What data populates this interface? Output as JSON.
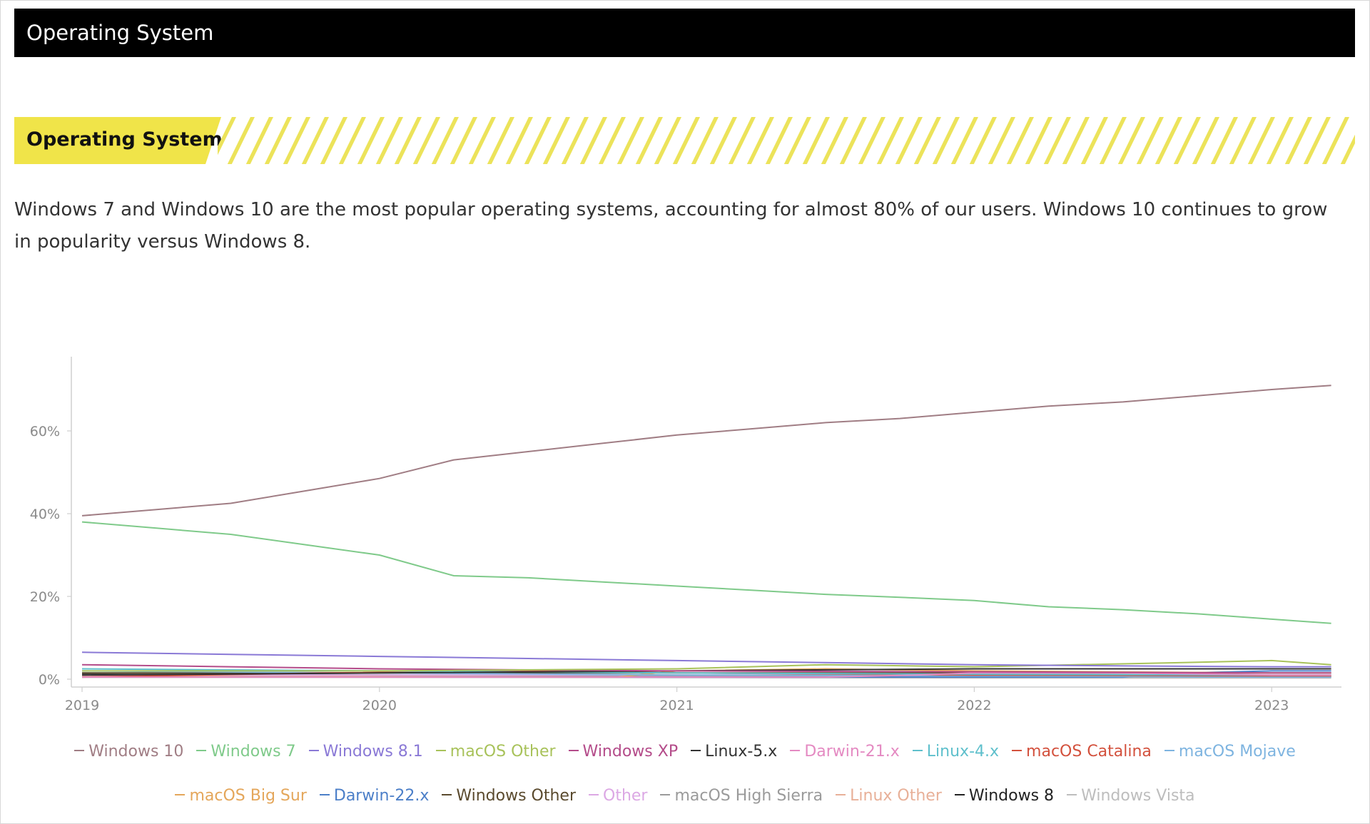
{
  "header": {
    "title": "Operating System"
  },
  "section": {
    "title": "Operating System",
    "accent_color": "#f0e449"
  },
  "description": "Windows 7 and Windows 10 are the most popular operating systems, accounting for almost 80% of our users. Windows 10 continues to grow in popularity versus Windows 8.",
  "chart_data": {
    "type": "line",
    "title": "",
    "xlabel": "",
    "ylabel": "",
    "x_ticks": [
      "2019",
      "2020",
      "2021",
      "2022",
      "2023"
    ],
    "y_ticks": [
      "0%",
      "20%",
      "40%",
      "60%"
    ],
    "y_tick_values": [
      0,
      20,
      40,
      60
    ],
    "ylim": [
      0,
      78
    ],
    "xlim": [
      2019.0,
      2023.25
    ],
    "grid": false,
    "legend_position": "bottom",
    "series": [
      {
        "name": "Windows 10",
        "color": "#a07d84",
        "points": [
          [
            2019.0,
            39.5
          ],
          [
            2019.25,
            41.0
          ],
          [
            2019.5,
            42.5
          ],
          [
            2019.75,
            45.5
          ],
          [
            2020.0,
            48.5
          ],
          [
            2020.25,
            53.0
          ],
          [
            2020.5,
            55.0
          ],
          [
            2020.75,
            57.0
          ],
          [
            2021.0,
            59.0
          ],
          [
            2021.25,
            60.5
          ],
          [
            2021.5,
            62.0
          ],
          [
            2021.75,
            63.0
          ],
          [
            2022.0,
            64.5
          ],
          [
            2022.25,
            66.0
          ],
          [
            2022.5,
            67.0
          ],
          [
            2022.75,
            68.5
          ],
          [
            2023.0,
            70.0
          ],
          [
            2023.2,
            71.0
          ]
        ]
      },
      {
        "name": "Windows 7",
        "color": "#7fca8a",
        "points": [
          [
            2019.0,
            38.0
          ],
          [
            2019.25,
            36.5
          ],
          [
            2019.5,
            35.0
          ],
          [
            2019.75,
            32.5
          ],
          [
            2020.0,
            30.0
          ],
          [
            2020.25,
            25.0
          ],
          [
            2020.5,
            24.5
          ],
          [
            2020.75,
            23.5
          ],
          [
            2021.0,
            22.5
          ],
          [
            2021.25,
            21.5
          ],
          [
            2021.5,
            20.5
          ],
          [
            2021.75,
            19.8
          ],
          [
            2022.0,
            19.0
          ],
          [
            2022.25,
            17.5
          ],
          [
            2022.5,
            16.8
          ],
          [
            2022.75,
            15.8
          ],
          [
            2023.0,
            14.5
          ],
          [
            2023.2,
            13.5
          ]
        ]
      },
      {
        "name": "Windows 8.1",
        "color": "#8a79d6",
        "points": [
          [
            2019.0,
            6.5
          ],
          [
            2019.5,
            6.0
          ],
          [
            2020.0,
            5.5
          ],
          [
            2020.5,
            5.0
          ],
          [
            2021.0,
            4.5
          ],
          [
            2021.5,
            4.0
          ],
          [
            2022.0,
            3.5
          ],
          [
            2022.5,
            3.2
          ],
          [
            2023.0,
            3.0
          ],
          [
            2023.2,
            3.0
          ]
        ]
      },
      {
        "name": "macOS Other",
        "color": "#a8c25a",
        "points": [
          [
            2019.0,
            2.0
          ],
          [
            2020.0,
            2.0
          ],
          [
            2021.0,
            2.5
          ],
          [
            2021.5,
            3.5
          ],
          [
            2022.0,
            3.0
          ],
          [
            2022.7,
            4.0
          ],
          [
            2023.0,
            4.5
          ],
          [
            2023.2,
            3.5
          ]
        ]
      },
      {
        "name": "Windows XP",
        "color": "#b44c8a",
        "points": [
          [
            2019.0,
            3.5
          ],
          [
            2019.5,
            3.0
          ],
          [
            2020.0,
            2.5
          ],
          [
            2021.0,
            2.0
          ],
          [
            2022.0,
            1.8
          ],
          [
            2023.0,
            1.5
          ],
          [
            2023.2,
            1.5
          ]
        ]
      },
      {
        "name": "Linux-5.x",
        "color": "#333333",
        "points": [
          [
            2019.0,
            1.0
          ],
          [
            2020.0,
            1.5
          ],
          [
            2021.0,
            2.0
          ],
          [
            2022.0,
            2.5
          ],
          [
            2023.0,
            2.5
          ],
          [
            2023.2,
            2.5
          ]
        ]
      },
      {
        "name": "Darwin-21.x",
        "color": "#e48ac2",
        "points": [
          [
            2019.0,
            0.5
          ],
          [
            2021.5,
            0.5
          ],
          [
            2021.8,
            1.0
          ],
          [
            2022.0,
            1.5
          ],
          [
            2022.5,
            1.5
          ],
          [
            2023.0,
            1.0
          ],
          [
            2023.2,
            1.0
          ]
        ]
      },
      {
        "name": "Linux-4.x",
        "color": "#5fc0cc",
        "points": [
          [
            2019.0,
            2.5
          ],
          [
            2020.0,
            2.0
          ],
          [
            2021.0,
            1.5
          ],
          [
            2022.0,
            1.2
          ],
          [
            2023.0,
            1.0
          ],
          [
            2023.2,
            1.0
          ]
        ]
      },
      {
        "name": "macOS Catalina",
        "color": "#d3513d",
        "points": [
          [
            2019.0,
            0.5
          ],
          [
            2019.8,
            1.5
          ],
          [
            2020.5,
            2.0
          ],
          [
            2021.0,
            1.5
          ],
          [
            2022.0,
            1.0
          ],
          [
            2023.0,
            0.8
          ],
          [
            2023.2,
            0.8
          ]
        ]
      },
      {
        "name": "macOS Mojave",
        "color": "#7eb4e0",
        "points": [
          [
            2019.0,
            2.0
          ],
          [
            2020.0,
            1.5
          ],
          [
            2021.0,
            1.0
          ],
          [
            2022.0,
            0.8
          ],
          [
            2023.0,
            0.5
          ],
          [
            2023.2,
            0.5
          ]
        ]
      },
      {
        "name": "macOS Big Sur",
        "color": "#e4a65a",
        "points": [
          [
            2019.0,
            0.5
          ],
          [
            2020.8,
            0.5
          ],
          [
            2021.0,
            2.0
          ],
          [
            2021.5,
            2.5
          ],
          [
            2022.0,
            2.0
          ],
          [
            2023.0,
            1.5
          ],
          [
            2023.2,
            1.5
          ]
        ]
      },
      {
        "name": "Darwin-22.x",
        "color": "#4c7fc8",
        "points": [
          [
            2019.0,
            0.5
          ],
          [
            2022.5,
            0.5
          ],
          [
            2022.7,
            1.5
          ],
          [
            2023.0,
            2.0
          ],
          [
            2023.2,
            2.0
          ]
        ]
      },
      {
        "name": "Windows Other",
        "color": "#5a4a2e",
        "points": [
          [
            2019.0,
            1.5
          ],
          [
            2020.0,
            1.5
          ],
          [
            2021.0,
            1.5
          ],
          [
            2022.0,
            1.5
          ],
          [
            2023.0,
            1.5
          ],
          [
            2023.2,
            1.5
          ]
        ]
      },
      {
        "name": "Other",
        "color": "#dca8e4",
        "points": [
          [
            2019.0,
            1.0
          ],
          [
            2020.0,
            1.0
          ],
          [
            2021.0,
            1.0
          ],
          [
            2022.0,
            1.0
          ],
          [
            2023.0,
            1.0
          ],
          [
            2023.2,
            1.0
          ]
        ]
      },
      {
        "name": "macOS High Sierra",
        "color": "#9a9a9a",
        "points": [
          [
            2019.0,
            1.5
          ],
          [
            2020.0,
            1.0
          ],
          [
            2021.0,
            0.8
          ],
          [
            2022.0,
            0.6
          ],
          [
            2023.0,
            0.5
          ],
          [
            2023.2,
            0.5
          ]
        ]
      },
      {
        "name": "Linux Other",
        "color": "#e8b098",
        "points": [
          [
            2019.0,
            0.8
          ],
          [
            2020.0,
            0.8
          ],
          [
            2021.0,
            0.8
          ],
          [
            2022.0,
            0.8
          ],
          [
            2023.0,
            0.8
          ],
          [
            2023.2,
            0.8
          ]
        ]
      },
      {
        "name": "Windows 8",
        "color": "#222222",
        "points": [
          [
            2019.0,
            1.2
          ],
          [
            2020.0,
            1.0
          ],
          [
            2021.0,
            0.9
          ],
          [
            2022.0,
            0.8
          ],
          [
            2023.0,
            0.7
          ],
          [
            2023.2,
            0.7
          ]
        ]
      },
      {
        "name": "Windows Vista",
        "color": "#bdbdbd",
        "points": [
          [
            2019.0,
            0.6
          ],
          [
            2020.0,
            0.5
          ],
          [
            2021.0,
            0.4
          ],
          [
            2022.0,
            0.3
          ],
          [
            2023.0,
            0.3
          ],
          [
            2023.2,
            0.3
          ]
        ]
      }
    ]
  }
}
